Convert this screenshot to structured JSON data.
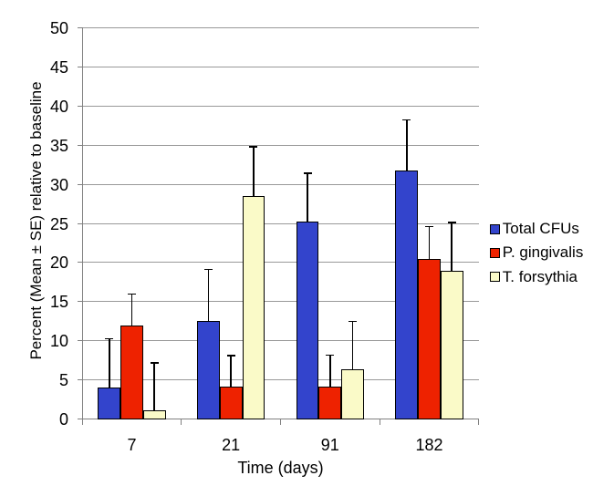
{
  "chart_data": {
    "type": "bar",
    "title": "",
    "xlabel": "Time (days)",
    "ylabel": "Percent (Mean ± SE) relative to baseline",
    "categories": [
      "7",
      "21",
      "91",
      "182"
    ],
    "series": [
      {
        "name": "Total CFUs",
        "color": "#3344cc",
        "values": [
          4.0,
          12.6,
          25.2,
          31.8
        ],
        "se": [
          6.3,
          6.5,
          6.2,
          6.4
        ]
      },
      {
        "name": "P. gingivalis",
        "color": "#ee2200",
        "values": [
          12.0,
          4.2,
          4.2,
          20.5
        ],
        "se": [
          4.0,
          3.9,
          4.0,
          4.1
        ]
      },
      {
        "name": "T. forsythia",
        "color": "#fafac8",
        "values": [
          1.1,
          28.5,
          6.4,
          19.0
        ],
        "se": [
          6.1,
          6.3,
          6.1,
          6.1
        ]
      }
    ],
    "ylim": [
      0,
      50
    ],
    "ytick_step": 5,
    "grid": true,
    "legend_position": "right",
    "error_bars": "upper",
    "colors": {
      "bar_border": "#000000",
      "error_bar": "#000000",
      "gridline": "#999999",
      "axis": "#808080",
      "text": "#000000",
      "background": "#ffffff"
    }
  }
}
